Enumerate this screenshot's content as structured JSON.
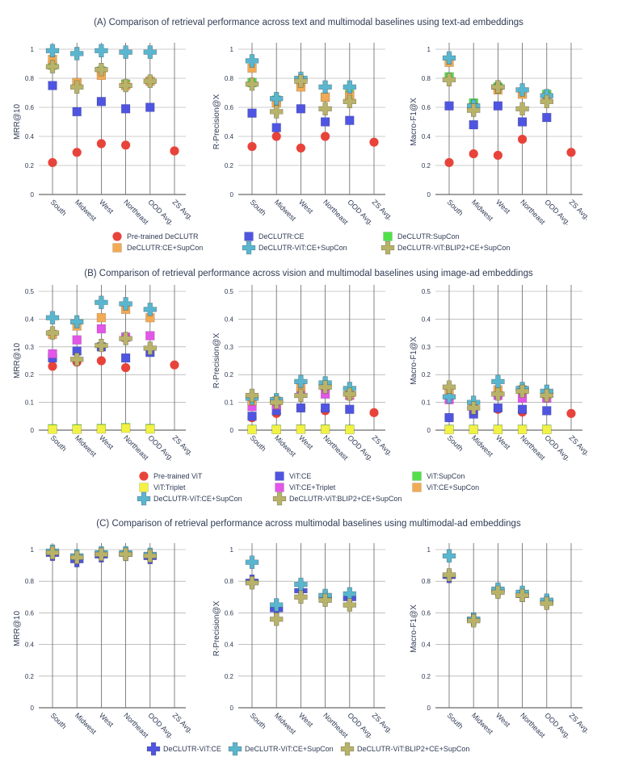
{
  "figure": {
    "sections": [
      {
        "id": "A",
        "title": "(A) Comparison of retrieval performance across text and multimodal baselines using text-ad embeddings",
        "categories": [
          "South",
          "Midwest",
          "West",
          "Northeast",
          "OOD Avg.",
          "ZS Avg."
        ],
        "legend": [
          {
            "label": "Pre-trained DeCLUTR",
            "marker": "circle",
            "color": "#e8433b"
          },
          {
            "label": "DeCLUTR:CE",
            "marker": "square",
            "color": "#4f55e0"
          },
          {
            "label": "DeCLUTR:SupCon",
            "marker": "square",
            "color": "#4fe04a"
          },
          {
            "label": "DeCLUTR:CE+SupCon",
            "marker": "square",
            "color": "#f2aa55"
          },
          {
            "label": "DeCLUTR-ViT:CE+SupCon",
            "marker": "plus",
            "color": "#5ab6cf"
          },
          {
            "label": "DeCLUTR-ViT:BLIP2+CE+SupCon",
            "marker": "plus",
            "color": "#b9b36a"
          }
        ]
      },
      {
        "id": "B",
        "title": "(B) Comparison of retrieval performance across vision and multimodal baselines using image-ad embeddings",
        "categories": [
          "South",
          "Midwest",
          "West",
          "Northeast",
          "OOD Avg.",
          "ZS Avg."
        ],
        "legend": [
          {
            "label": "Pre-trained ViT",
            "marker": "circle",
            "color": "#e8433b"
          },
          {
            "label": "ViT:CE",
            "marker": "square",
            "color": "#4f55e0"
          },
          {
            "label": "ViT:SupCon",
            "marker": "square",
            "color": "#4fe04a"
          },
          {
            "label": "ViT:Triplet",
            "marker": "square",
            "color": "#f2f244"
          },
          {
            "label": "ViT:CE+Triplet",
            "marker": "square",
            "color": "#e256e8"
          },
          {
            "label": "ViT:CE+SupCon",
            "marker": "square",
            "color": "#f2aa55"
          },
          {
            "label": "DeCLUTR-ViT:CE+SupCon",
            "marker": "plus",
            "color": "#5ab6cf"
          },
          {
            "label": "DeCLUTR-ViT:BLIP2+CE+SupCon",
            "marker": "plus",
            "color": "#b9b36a"
          }
        ]
      },
      {
        "id": "C",
        "title": "(C) Comparison of retrieval performance across multimodal baselines using multimodal-ad embeddings",
        "categories": [
          "South",
          "Midwest",
          "West",
          "Northeast",
          "OOD Avg.",
          "ZS Avg."
        ],
        "legend": [
          {
            "label": "DeCLUTR-ViT:CE",
            "marker": "plus",
            "color": "#4f55e0"
          },
          {
            "label": "DeCLUTR-ViT:CE+SupCon",
            "marker": "plus",
            "color": "#5ab6cf"
          },
          {
            "label": "DeCLUTR-ViT:BLIP2+CE+SupCon",
            "marker": "plus",
            "color": "#b9b36a"
          }
        ]
      }
    ]
  },
  "chart_data": [
    {
      "type": "scatter",
      "section": "A",
      "ylabel": "MRR@10",
      "ylim": [
        0,
        1
      ],
      "yticks": [
        "0",
        "0.2",
        "0.4",
        "0.6",
        "0.8",
        "1"
      ],
      "categories": [
        "South",
        "Midwest",
        "West",
        "Northeast",
        "OOD Avg.",
        "ZS Avg."
      ],
      "series": [
        {
          "name": "Pre-trained DeCLUTR",
          "values": [
            0.22,
            0.29,
            0.35,
            0.34,
            null,
            0.3
          ]
        },
        {
          "name": "DeCLUTR:CE",
          "values": [
            0.75,
            0.57,
            0.64,
            0.59,
            0.6,
            null
          ]
        },
        {
          "name": "DeCLUTR:SupCon",
          "values": [
            0.89,
            0.77,
            0.85,
            0.76,
            0.78,
            null
          ]
        },
        {
          "name": "DeCLUTR:CE+SupCon",
          "values": [
            0.93,
            0.77,
            0.82,
            0.75,
            0.78,
            null
          ]
        },
        {
          "name": "DeCLUTR-ViT:CE+SupCon",
          "values": [
            0.99,
            0.97,
            0.99,
            0.98,
            0.98,
            null
          ]
        },
        {
          "name": "DeCLUTR-ViT:BLIP2+CE+SupCon",
          "values": [
            0.88,
            0.74,
            0.86,
            0.75,
            0.78,
            null
          ]
        }
      ]
    },
    {
      "type": "scatter",
      "section": "A",
      "ylabel": "R-Precision@X",
      "ylim": [
        0,
        1
      ],
      "yticks": [
        "0",
        "0.2",
        "0.4",
        "0.6",
        "0.8",
        "1"
      ],
      "categories": [
        "South",
        "Midwest",
        "West",
        "Northeast",
        "OOD Avg.",
        "ZS Avg."
      ],
      "series": [
        {
          "name": "Pre-trained DeCLUTR",
          "values": [
            0.33,
            0.4,
            0.32,
            0.4,
            null,
            0.36
          ]
        },
        {
          "name": "DeCLUTR:CE",
          "values": [
            0.56,
            0.46,
            0.59,
            0.5,
            0.51,
            null
          ]
        },
        {
          "name": "DeCLUTR:SupCon",
          "values": [
            0.77,
            0.65,
            0.77,
            0.67,
            0.69,
            null
          ]
        },
        {
          "name": "DeCLUTR:CE+SupCon",
          "values": [
            0.87,
            0.63,
            0.74,
            0.67,
            0.68,
            null
          ]
        },
        {
          "name": "DeCLUTR-ViT:CE+SupCon",
          "values": [
            0.92,
            0.66,
            0.8,
            0.74,
            0.74,
            null
          ]
        },
        {
          "name": "DeCLUTR-ViT:BLIP2+CE+SupCon",
          "values": [
            0.76,
            0.57,
            0.78,
            0.59,
            0.64,
            null
          ]
        }
      ]
    },
    {
      "type": "scatter",
      "section": "A",
      "ylabel": "Macro-F1@X",
      "ylim": [
        0,
        1
      ],
      "yticks": [
        "0",
        "0.2",
        "0.4",
        "0.6",
        "0.8",
        "1"
      ],
      "categories": [
        "South",
        "Midwest",
        "West",
        "Northeast",
        "OOD Avg.",
        "ZS Avg."
      ],
      "series": [
        {
          "name": "Pre-trained DeCLUTR",
          "values": [
            0.22,
            0.28,
            0.27,
            0.38,
            null,
            0.29
          ]
        },
        {
          "name": "DeCLUTR:CE",
          "values": [
            0.61,
            0.48,
            0.61,
            0.5,
            0.53,
            null
          ]
        },
        {
          "name": "DeCLUTR:SupCon",
          "values": [
            0.81,
            0.63,
            0.74,
            0.7,
            0.69,
            null
          ]
        },
        {
          "name": "DeCLUTR:CE+SupCon",
          "values": [
            0.91,
            0.6,
            0.72,
            0.69,
            0.67,
            null
          ]
        },
        {
          "name": "DeCLUTR-ViT:CE+SupCon",
          "values": [
            0.94,
            0.61,
            0.74,
            0.72,
            0.68,
            null
          ]
        },
        {
          "name": "DeCLUTR-ViT:BLIP2+CE+SupCon",
          "values": [
            0.79,
            0.58,
            0.74,
            0.59,
            0.64,
            null
          ]
        }
      ]
    },
    {
      "type": "scatter",
      "section": "B",
      "ylabel": "MRR@10",
      "ylim": [
        0,
        0.5
      ],
      "yticks": [
        "0",
        "0.1",
        "0.2",
        "0.3",
        "0.4",
        "0.5"
      ],
      "categories": [
        "South",
        "Midwest",
        "West",
        "Northeast",
        "OOD Avg.",
        "ZS Avg."
      ],
      "series": [
        {
          "name": "Pre-trained ViT",
          "values": [
            0.23,
            0.245,
            0.25,
            0.225,
            null,
            0.235
          ]
        },
        {
          "name": "ViT:CE",
          "values": [
            0.26,
            0.285,
            0.3,
            0.26,
            0.28,
            null
          ]
        },
        {
          "name": "ViT:SupCon",
          "values": [
            0.005,
            0.005,
            0.006,
            0.009,
            0.006,
            null
          ]
        },
        {
          "name": "ViT:Triplet",
          "values": [
            0.003,
            0.003,
            0.004,
            0.007,
            0.004,
            null
          ]
        },
        {
          "name": "ViT:CE+Triplet",
          "values": [
            0.275,
            0.325,
            0.365,
            0.335,
            0.34,
            null
          ]
        },
        {
          "name": "ViT:CE+SupCon",
          "values": [
            0.345,
            0.375,
            0.405,
            0.435,
            0.405,
            null
          ]
        },
        {
          "name": "DeCLUTR-ViT:CE+SupCon",
          "values": [
            0.405,
            0.39,
            0.46,
            0.455,
            0.435,
            null
          ]
        },
        {
          "name": "DeCLUTR-ViT:BLIP2+CE+SupCon",
          "values": [
            0.35,
            0.255,
            0.305,
            0.33,
            0.295,
            null
          ]
        }
      ]
    },
    {
      "type": "scatter",
      "section": "B",
      "ylabel": "R-Precision@X",
      "ylim": [
        0,
        0.5
      ],
      "yticks": [
        "0",
        "0.1",
        "0.2",
        "0.3",
        "0.4",
        "0.5"
      ],
      "categories": [
        "South",
        "Midwest",
        "West",
        "Northeast",
        "OOD Avg.",
        "ZS Avg."
      ],
      "series": [
        {
          "name": "Pre-trained ViT",
          "values": [
            0.045,
            0.06,
            0.08,
            0.07,
            null,
            0.063
          ]
        },
        {
          "name": "ViT:CE",
          "values": [
            0.05,
            0.07,
            0.08,
            0.08,
            0.075,
            null
          ]
        },
        {
          "name": "ViT:SupCon",
          "values": [
            0.003,
            0.003,
            0.004,
            0.004,
            0.003,
            null
          ]
        },
        {
          "name": "ViT:Triplet",
          "values": [
            0.002,
            0.002,
            0.003,
            0.003,
            0.002,
            null
          ]
        },
        {
          "name": "ViT:CE+Triplet",
          "values": [
            0.085,
            0.09,
            0.14,
            0.13,
            0.125,
            null
          ]
        },
        {
          "name": "ViT:CE+SupCon",
          "values": [
            0.105,
            0.105,
            0.155,
            0.16,
            0.13,
            null
          ]
        },
        {
          "name": "DeCLUTR-ViT:CE+SupCon",
          "values": [
            0.115,
            0.11,
            0.175,
            0.17,
            0.15,
            null
          ]
        },
        {
          "name": "DeCLUTR-ViT:BLIP2+CE+SupCon",
          "values": [
            0.125,
            0.1,
            0.125,
            0.155,
            0.13,
            null
          ]
        }
      ]
    },
    {
      "type": "scatter",
      "section": "B",
      "ylabel": "Macro-F1@X",
      "ylim": [
        0,
        0.5
      ],
      "yticks": [
        "0",
        "0.1",
        "0.2",
        "0.3",
        "0.4",
        "0.5"
      ],
      "categories": [
        "South",
        "Midwest",
        "West",
        "Northeast",
        "OOD Avg.",
        "ZS Avg."
      ],
      "series": [
        {
          "name": "Pre-trained ViT",
          "values": [
            0.045,
            0.06,
            0.075,
            0.065,
            null,
            0.06
          ]
        },
        {
          "name": "ViT:CE",
          "values": [
            0.045,
            0.058,
            0.08,
            0.075,
            0.07,
            null
          ]
        },
        {
          "name": "ViT:SupCon",
          "values": [
            0.003,
            0.003,
            0.003,
            0.003,
            0.003,
            null
          ]
        },
        {
          "name": "ViT:Triplet",
          "values": [
            0.002,
            0.002,
            0.002,
            0.002,
            0.002,
            null
          ]
        },
        {
          "name": "ViT:CE+Triplet",
          "values": [
            0.11,
            0.085,
            0.125,
            0.115,
            0.115,
            null
          ]
        },
        {
          "name": "ViT:CE+SupCon",
          "values": [
            0.14,
            0.09,
            0.145,
            0.145,
            0.13,
            null
          ]
        },
        {
          "name": "DeCLUTR-ViT:CE+SupCon",
          "values": [
            0.12,
            0.1,
            0.175,
            0.15,
            0.14,
            null
          ]
        },
        {
          "name": "DeCLUTR-ViT:BLIP2+CE+SupCon",
          "values": [
            0.155,
            0.08,
            0.13,
            0.14,
            0.125,
            null
          ]
        }
      ]
    },
    {
      "type": "scatter",
      "section": "C",
      "ylabel": "MRR@10",
      "ylim": [
        0,
        1
      ],
      "yticks": [
        "0",
        "0.2",
        "0.4",
        "0.6",
        "0.8",
        "1"
      ],
      "categories": [
        "South",
        "Midwest",
        "West",
        "Northeast",
        "OOD Avg.",
        "ZS Avg."
      ],
      "series": [
        {
          "name": "DeCLUTR-ViT:CE",
          "values": [
            0.97,
            0.93,
            0.96,
            0.97,
            0.95,
            null
          ]
        },
        {
          "name": "DeCLUTR-ViT:CE+SupCon",
          "values": [
            0.99,
            0.96,
            0.98,
            0.98,
            0.97,
            null
          ]
        },
        {
          "name": "DeCLUTR-ViT:BLIP2+CE+SupCon",
          "values": [
            0.98,
            0.95,
            0.97,
            0.97,
            0.96,
            null
          ]
        }
      ]
    },
    {
      "type": "scatter",
      "section": "C",
      "ylabel": "R-Precision@X",
      "ylim": [
        0,
        1
      ],
      "yticks": [
        "0",
        "0.2",
        "0.4",
        "0.6",
        "0.8",
        "1"
      ],
      "categories": [
        "South",
        "Midwest",
        "West",
        "Northeast",
        "OOD Avg.",
        "ZS Avg."
      ],
      "series": [
        {
          "name": "DeCLUTR-ViT:CE",
          "values": [
            0.8,
            0.62,
            0.74,
            0.7,
            0.69,
            null
          ]
        },
        {
          "name": "DeCLUTR-ViT:CE+SupCon",
          "values": [
            0.92,
            0.65,
            0.78,
            0.71,
            0.72,
            null
          ]
        },
        {
          "name": "DeCLUTR-ViT:BLIP2+CE+SupCon",
          "values": [
            0.79,
            0.56,
            0.7,
            0.68,
            0.65,
            null
          ]
        }
      ]
    },
    {
      "type": "scatter",
      "section": "C",
      "ylabel": "Macro-F1@X",
      "ylim": [
        0,
        1
      ],
      "yticks": [
        "0",
        "0.2",
        "0.4",
        "0.6",
        "0.8",
        "1"
      ],
      "categories": [
        "South",
        "Midwest",
        "West",
        "Northeast",
        "OOD Avg.",
        "ZS Avg."
      ],
      "series": [
        {
          "name": "DeCLUTR-ViT:CE",
          "values": [
            0.83,
            0.56,
            0.74,
            0.71,
            0.67,
            null
          ]
        },
        {
          "name": "DeCLUTR-ViT:CE+SupCon",
          "values": [
            0.96,
            0.56,
            0.75,
            0.73,
            0.68,
            null
          ]
        },
        {
          "name": "DeCLUTR-ViT:BLIP2+CE+SupCon",
          "values": [
            0.84,
            0.55,
            0.73,
            0.71,
            0.66,
            null
          ]
        }
      ]
    }
  ]
}
